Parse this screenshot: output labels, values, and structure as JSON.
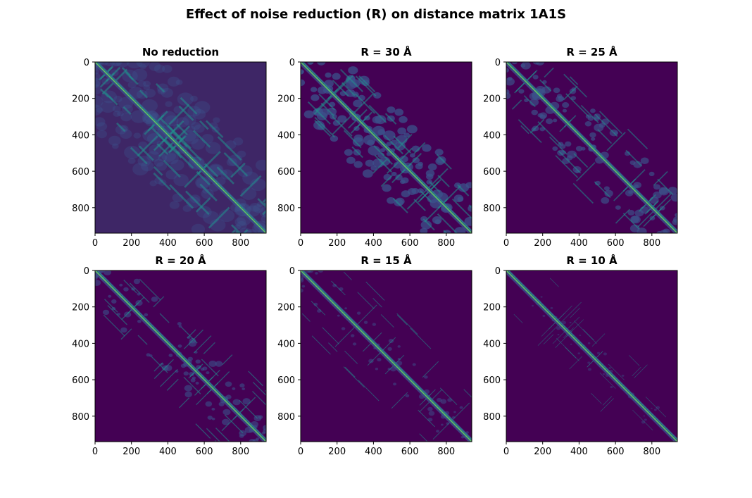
{
  "title": "Effect of noise reduction (R) on distance matrix 1A1S",
  "chart_data": [
    {
      "type": "heatmap",
      "title": "No reduction",
      "cutoff": null,
      "xlim": [
        0,
        940
      ],
      "ylim": [
        940,
        0
      ],
      "y_inverted": true,
      "xticks": [
        0,
        200,
        400,
        600,
        800
      ],
      "yticks": [
        0,
        200,
        400,
        600,
        800
      ],
      "colormap": "viridis"
    },
    {
      "type": "heatmap",
      "title": "R = 30 Å",
      "cutoff": 30,
      "xlim": [
        0,
        940
      ],
      "ylim": [
        940,
        0
      ],
      "y_inverted": true,
      "xticks": [
        0,
        200,
        400,
        600,
        800
      ],
      "yticks": [
        0,
        200,
        400,
        600,
        800
      ],
      "colormap": "viridis"
    },
    {
      "type": "heatmap",
      "title": "R = 25 Å",
      "cutoff": 25,
      "xlim": [
        0,
        940
      ],
      "ylim": [
        940,
        0
      ],
      "y_inverted": true,
      "xticks": [
        0,
        200,
        400,
        600,
        800
      ],
      "yticks": [
        0,
        200,
        400,
        600,
        800
      ],
      "colormap": "viridis"
    },
    {
      "type": "heatmap",
      "title": "R = 20 Å",
      "cutoff": 20,
      "xlim": [
        0,
        940
      ],
      "ylim": [
        940,
        0
      ],
      "y_inverted": true,
      "xticks": [
        0,
        200,
        400,
        600,
        800
      ],
      "yticks": [
        0,
        200,
        400,
        600,
        800
      ],
      "colormap": "viridis"
    },
    {
      "type": "heatmap",
      "title": "R = 15 Å",
      "cutoff": 15,
      "xlim": [
        0,
        940
      ],
      "ylim": [
        940,
        0
      ],
      "y_inverted": true,
      "xticks": [
        0,
        200,
        400,
        600,
        800
      ],
      "yticks": [
        0,
        200,
        400,
        600,
        800
      ],
      "colormap": "viridis"
    },
    {
      "type": "heatmap",
      "title": "R = 10 Å",
      "cutoff": 10,
      "xlim": [
        0,
        940
      ],
      "ylim": [
        940,
        0
      ],
      "y_inverted": true,
      "xticks": [
        0,
        200,
        400,
        600,
        800
      ],
      "yticks": [
        0,
        200,
        400,
        600,
        800
      ],
      "colormap": "viridis"
    }
  ],
  "colors": {
    "background_dark": "#440154",
    "mid": "#3b528b",
    "light": "#21908d",
    "highlight": "#5dc863"
  }
}
